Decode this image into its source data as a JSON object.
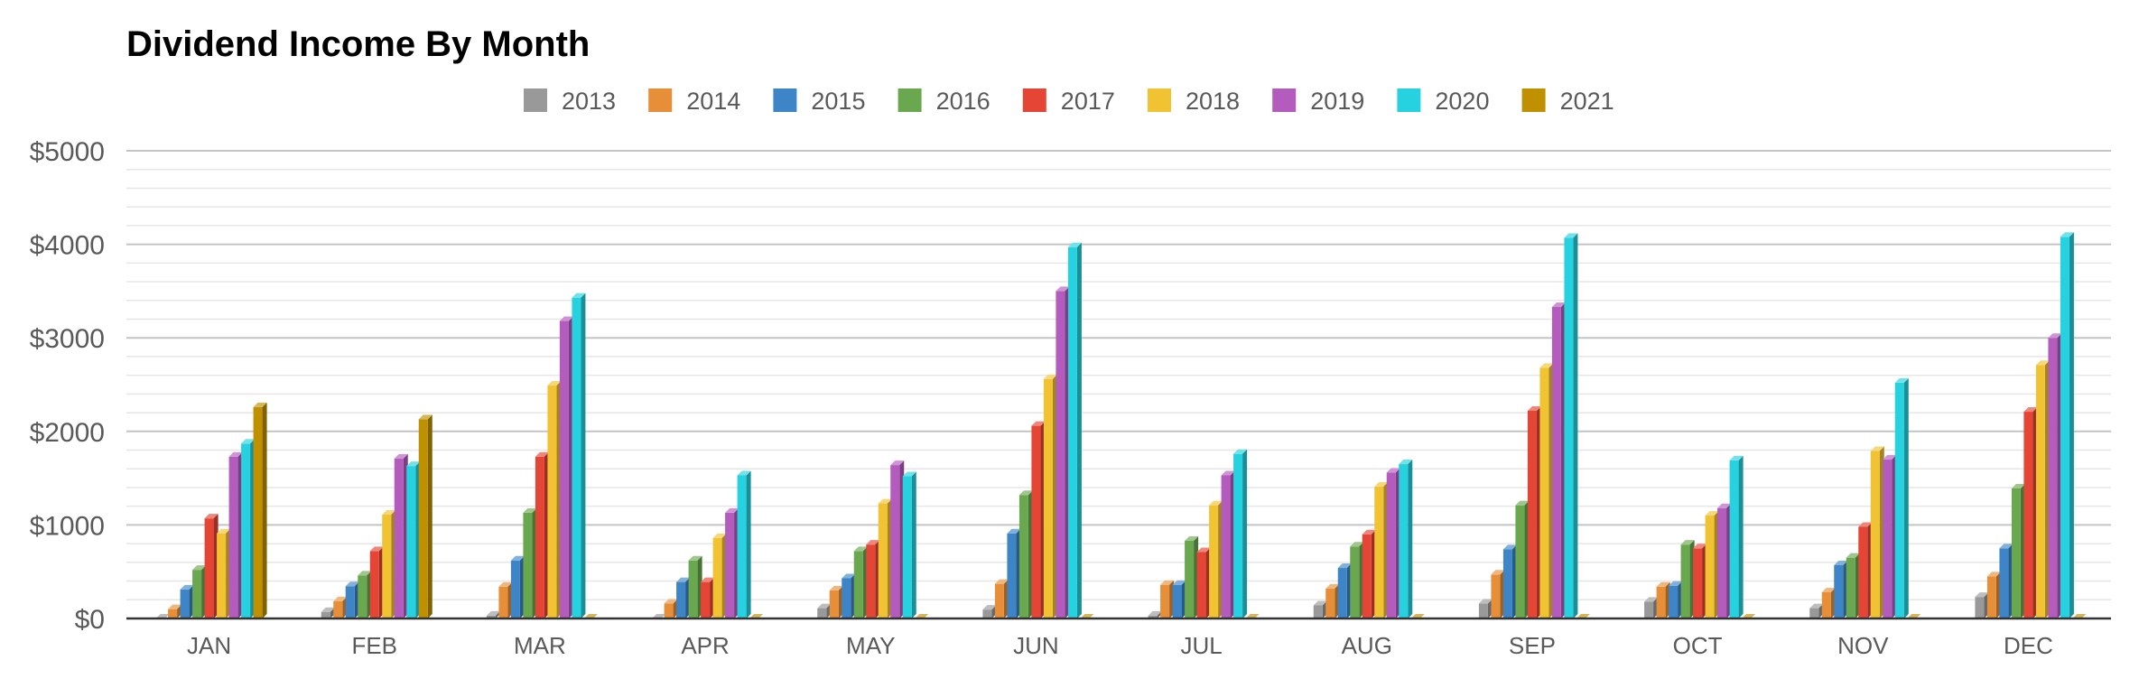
{
  "chart_data": {
    "type": "bar",
    "title": "Dividend Income By Month",
    "xlabel": "",
    "ylabel": "",
    "categories": [
      "JAN",
      "FEB",
      "MAR",
      "APR",
      "MAY",
      "JUN",
      "JUL",
      "AUG",
      "SEP",
      "OCT",
      "NOV",
      "DEC"
    ],
    "ylim": [
      0,
      5000
    ],
    "y_ticks": [
      {
        "value": 0,
        "label": "$0"
      },
      {
        "value": 1000,
        "label": "$1000"
      },
      {
        "value": 2000,
        "label": "$2000"
      },
      {
        "value": 3000,
        "label": "$3000"
      },
      {
        "value": 4000,
        "label": "$4000"
      },
      {
        "value": 5000,
        "label": "$5000"
      }
    ],
    "minor_gridlines_per_major": 5,
    "grid": true,
    "legend_position": "top",
    "bar_style": "3d-column",
    "series": [
      {
        "name": "2013",
        "color": "#999999",
        "values": [
          0,
          70,
          30,
          0,
          110,
          95,
          30,
          140,
          160,
          180,
          110,
          230
        ]
      },
      {
        "name": "2014",
        "color": "#e68f38",
        "values": [
          100,
          185,
          340,
          160,
          300,
          370,
          360,
          320,
          470,
          340,
          280,
          450
        ]
      },
      {
        "name": "2015",
        "color": "#3d85c6",
        "values": [
          310,
          345,
          620,
          390,
          430,
          910,
          360,
          540,
          740,
          350,
          570,
          750
        ]
      },
      {
        "name": "2016",
        "color": "#6aa84f",
        "values": [
          520,
          460,
          1130,
          620,
          720,
          1320,
          830,
          770,
          1210,
          790,
          650,
          1390
        ]
      },
      {
        "name": "2017",
        "color": "#e54535",
        "values": [
          1070,
          720,
          1730,
          390,
          790,
          2060,
          710,
          900,
          2220,
          750,
          980,
          2210
        ]
      },
      {
        "name": "2018",
        "color": "#f1c232",
        "values": [
          910,
          1110,
          2490,
          860,
          1230,
          2560,
          1210,
          1410,
          2680,
          1100,
          1790,
          2710
        ]
      },
      {
        "name": "2019",
        "color": "#b45bbe",
        "values": [
          1730,
          1710,
          3180,
          1130,
          1640,
          3500,
          1530,
          1560,
          3330,
          1180,
          1700,
          3000
        ]
      },
      {
        "name": "2020",
        "color": "#26d2df",
        "values": [
          1870,
          1630,
          3430,
          1530,
          1520,
          3970,
          1760,
          1650,
          4070,
          1690,
          2520,
          4080
        ]
      },
      {
        "name": "2021",
        "color": "#bf9000",
        "values": [
          2260,
          2130,
          0,
          0,
          0,
          0,
          0,
          0,
          0,
          0,
          0,
          0
        ]
      }
    ]
  }
}
